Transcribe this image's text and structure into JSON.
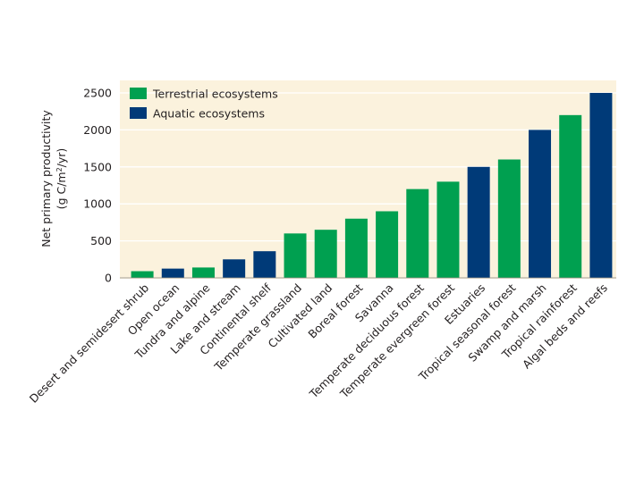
{
  "chart_data": {
    "type": "bar",
    "title": "",
    "xlabel": "",
    "ylabel_line1": "Net primary productivity",
    "ylabel_line2_prefix": "(g C/m",
    "ylabel_line2_sup": "2",
    "ylabel_line2_suffix": "/yr)",
    "ylim": [
      0,
      2500
    ],
    "yticks": [
      0,
      500,
      1000,
      1500,
      2000,
      2500
    ],
    "grid": true,
    "legend_position": "top-left",
    "categories": [
      "Desert and semidesert shrub",
      "Open ocean",
      "Tundra and alpine",
      "Lake and stream",
      "Continental shelf",
      "Temperate grassland",
      "Cultivated land",
      "Boreal forest",
      "Savanna",
      "Temperate deciduous forest",
      "Temperate evergreen forest",
      "Estuaries",
      "Tropical seasonal forest",
      "Swamp and marsh",
      "Tropical rainforest",
      "Algal beds and reefs"
    ],
    "values": [
      90,
      125,
      140,
      250,
      360,
      600,
      650,
      800,
      900,
      1200,
      1300,
      1500,
      1600,
      2000,
      2200,
      2500
    ],
    "groups": [
      "terrestrial",
      "aquatic",
      "terrestrial",
      "aquatic",
      "aquatic",
      "terrestrial",
      "terrestrial",
      "terrestrial",
      "terrestrial",
      "terrestrial",
      "terrestrial",
      "aquatic",
      "terrestrial",
      "aquatic",
      "terrestrial",
      "aquatic"
    ],
    "series": [
      {
        "key": "terrestrial",
        "name": "Terrestrial ecosystems",
        "color": "#00a050"
      },
      {
        "key": "aquatic",
        "name": "Aquatic ecosystems",
        "color": "#003a78"
      }
    ],
    "plot_background": "#fbf2dd",
    "gridline_color": "#ffffff"
  }
}
